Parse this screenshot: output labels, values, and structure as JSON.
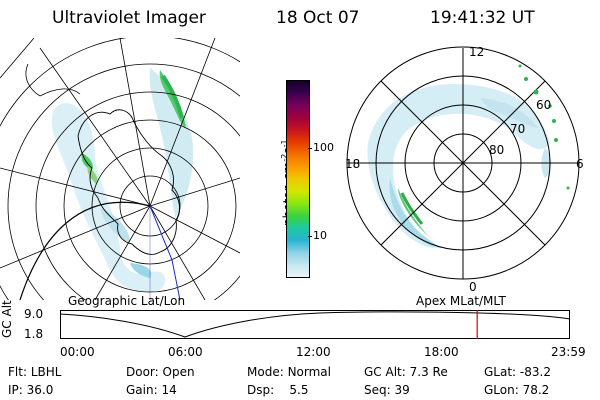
{
  "header": {
    "title": "Ultraviolet Imager",
    "date": "18 Oct 07",
    "time": "19:41:32 UT"
  },
  "colorbar": {
    "unit": "photon cm",
    "unit_exp1": "-2",
    "unit_s": "s",
    "unit_exp2": "-1",
    "ticks": [
      "100",
      "10"
    ],
    "colors": [
      "#140028",
      "#3c0050",
      "#78005a",
      "#a0003c",
      "#c8141e",
      "#e63c00",
      "#f56e00",
      "#fa9b00",
      "#f0c800",
      "#d2e600",
      "#8ce614",
      "#3cd23c",
      "#1ec8a0",
      "#28b4d2",
      "#8cd2e6",
      "#c8e6f0",
      "#ebf5fa"
    ]
  },
  "left_map": {
    "label": "Geographic Lat/Lon"
  },
  "right_map": {
    "label": "Apex MLat/MLT",
    "mlt_labels": {
      "top": "12",
      "bottom": "0",
      "left": "18",
      "right": "6"
    },
    "lat_labels": [
      "60",
      "70",
      "80"
    ]
  },
  "altitude_strip": {
    "axis_label": "GC Alt",
    "y_ticks": [
      "9.0",
      "1.8"
    ],
    "x_ticks": [
      "00:00",
      "06:00",
      "12:00",
      "18:00",
      "23:59"
    ],
    "current_time_fraction": 0.818,
    "marker_color": "#e00000"
  },
  "status": {
    "row1": {
      "filter_label": "Flt:",
      "filter_value": "LBHL",
      "door_label": "Door:",
      "door_value": "Open",
      "mode_label": "Mode:",
      "mode_value": "Normal",
      "gcalt_label": "GC Alt:",
      "gcalt_value": "7.3 Re",
      "glat_label": "GLat:",
      "glat_value": "-83.2"
    },
    "row2": {
      "ip_label": "IP:",
      "ip_value": "36.0",
      "gain_label": "Gain:",
      "gain_value": "14",
      "dsp_label": "Dsp:",
      "dsp_value": "5.5",
      "seq_label": "Seq:",
      "seq_value": "39",
      "glon_label": "GLon:",
      "glon_value": "78.2"
    }
  }
}
